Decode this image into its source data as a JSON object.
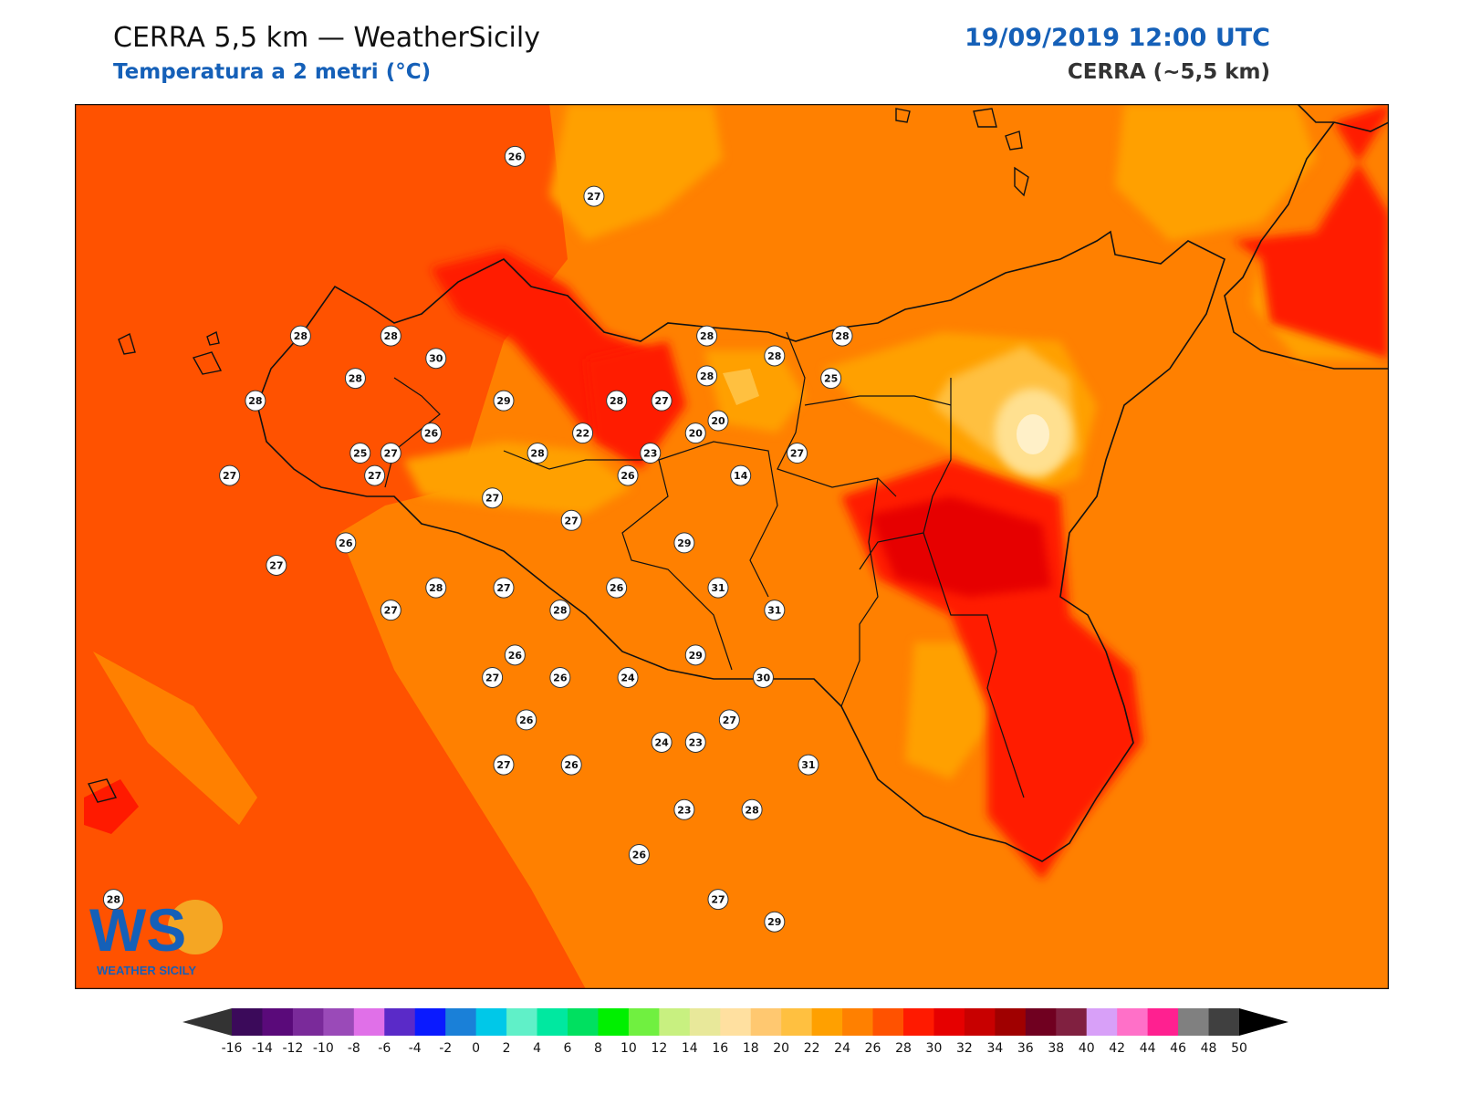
{
  "header": {
    "title": "CERRA 5,5 km — WeatherSicily",
    "subtitle": "Temperatura a 2 metri (°C)",
    "datetime": "19/09/2019 12:00 UTC",
    "model": "CERRA (~5,5 km)"
  },
  "logo": {
    "letters": "WS",
    "text": "WEATHER SICILY"
  },
  "colors": {
    "background_sea": "#ff5200",
    "land_mid": "#ff8000",
    "warm_band": "#ffa000",
    "cool_band": "#ffc040",
    "cooler": "#ffe090",
    "hot": "#ff1a00",
    "hotter": "#e60000",
    "coast": "#111111",
    "brand_blue": "#1560b8"
  },
  "stations": [
    {
      "label": "26",
      "lon": 13.73,
      "lat": 38.94
    },
    {
      "label": "27",
      "lon": 14.22,
      "lat": 38.78
    },
    {
      "label": "28",
      "lon": 12.4,
      "lat": 38.22
    },
    {
      "label": "28",
      "lon": 12.96,
      "lat": 38.22
    },
    {
      "label": "30",
      "lon": 13.24,
      "lat": 38.13
    },
    {
      "label": "28",
      "lon": 12.74,
      "lat": 38.05
    },
    {
      "label": "28",
      "lon": 12.12,
      "lat": 37.96
    },
    {
      "label": "29",
      "lon": 13.66,
      "lat": 37.96
    },
    {
      "label": "28",
      "lon": 14.36,
      "lat": 37.96
    },
    {
      "label": "27",
      "lon": 14.64,
      "lat": 37.96
    },
    {
      "label": "28",
      "lon": 14.92,
      "lat": 38.06
    },
    {
      "label": "28",
      "lon": 15.34,
      "lat": 38.14
    },
    {
      "label": "28",
      "lon": 15.76,
      "lat": 38.22
    },
    {
      "label": "28",
      "lon": 14.92,
      "lat": 38.22
    },
    {
      "label": "25",
      "lon": 15.69,
      "lat": 38.05
    },
    {
      "label": "20",
      "lon": 14.99,
      "lat": 37.88
    },
    {
      "label": "20",
      "lon": 14.85,
      "lat": 37.83
    },
    {
      "label": "14",
      "lon": 15.13,
      "lat": 37.66
    },
    {
      "label": "27",
      "lon": 15.48,
      "lat": 37.75
    },
    {
      "label": "23",
      "lon": 14.57,
      "lat": 37.75
    },
    {
      "label": "25",
      "lon": 12.77,
      "lat": 37.75
    },
    {
      "label": "27",
      "lon": 12.96,
      "lat": 37.75
    },
    {
      "label": "27",
      "lon": 12.86,
      "lat": 37.66
    },
    {
      "label": "26",
      "lon": 13.21,
      "lat": 37.83
    },
    {
      "label": "22",
      "lon": 14.15,
      "lat": 37.83
    },
    {
      "label": "28",
      "lon": 13.87,
      "lat": 37.75
    },
    {
      "label": "26",
      "lon": 14.43,
      "lat": 37.66
    },
    {
      "label": "27",
      "lon": 11.96,
      "lat": 37.66
    },
    {
      "label": "27",
      "lon": 13.59,
      "lat": 37.57
    },
    {
      "label": "27",
      "lon": 14.08,
      "lat": 37.48
    },
    {
      "label": "26",
      "lon": 12.68,
      "lat": 37.39
    },
    {
      "label": "29",
      "lon": 14.78,
      "lat": 37.39
    },
    {
      "label": "27",
      "lon": 12.25,
      "lat": 37.3
    },
    {
      "label": "31",
      "lon": 14.99,
      "lat": 37.21
    },
    {
      "label": "31",
      "lon": 15.34,
      "lat": 37.12
    },
    {
      "label": "27",
      "lon": 12.96,
      "lat": 37.12
    },
    {
      "label": "28",
      "lon": 13.24,
      "lat": 37.21
    },
    {
      "label": "27",
      "lon": 13.66,
      "lat": 37.21
    },
    {
      "label": "28",
      "lon": 14.01,
      "lat": 37.12
    },
    {
      "label": "26",
      "lon": 14.36,
      "lat": 37.21
    },
    {
      "label": "29",
      "lon": 14.85,
      "lat": 36.94
    },
    {
      "label": "26",
      "lon": 13.73,
      "lat": 36.94
    },
    {
      "label": "26",
      "lon": 14.01,
      "lat": 36.85
    },
    {
      "label": "24",
      "lon": 14.43,
      "lat": 36.85
    },
    {
      "label": "30",
      "lon": 15.27,
      "lat": 36.85
    },
    {
      "label": "27",
      "lon": 13.59,
      "lat": 36.85
    },
    {
      "label": "26",
      "lon": 13.8,
      "lat": 36.68
    },
    {
      "label": "24",
      "lon": 14.64,
      "lat": 36.59
    },
    {
      "label": "23",
      "lon": 14.85,
      "lat": 36.59
    },
    {
      "label": "27",
      "lon": 15.06,
      "lat": 36.68
    },
    {
      "label": "27",
      "lon": 13.66,
      "lat": 36.5
    },
    {
      "label": "26",
      "lon": 14.08,
      "lat": 36.5
    },
    {
      "label": "31",
      "lon": 15.55,
      "lat": 36.5
    },
    {
      "label": "23",
      "lon": 14.78,
      "lat": 36.32
    },
    {
      "label": "28",
      "lon": 15.2,
      "lat": 36.32
    },
    {
      "label": "26",
      "lon": 14.5,
      "lat": 36.14
    },
    {
      "label": "27",
      "lon": 14.99,
      "lat": 35.96
    },
    {
      "label": "29",
      "lon": 15.34,
      "lat": 35.87
    },
    {
      "label": "28",
      "lon": 11.24,
      "lat": 35.96
    }
  ],
  "colorbar": {
    "ticks": [
      "-16",
      "-14",
      "-12",
      "-10",
      "-8",
      "-6",
      "-4",
      "-2",
      "0",
      "2",
      "4",
      "6",
      "8",
      "10",
      "12",
      "14",
      "16",
      "18",
      "20",
      "22",
      "24",
      "26",
      "28",
      "30",
      "32",
      "34",
      "36",
      "38",
      "40",
      "42",
      "44",
      "46",
      "48",
      "50"
    ],
    "colors": [
      "#3b0a5a",
      "#5a0a7a",
      "#7a2a9a",
      "#9a4ab8",
      "#e070e8",
      "#5a2ac8",
      "#0a1aff",
      "#1a80d8",
      "#00c8e8",
      "#60f0c8",
      "#00e8a0",
      "#00e060",
      "#00f000",
      "#70f040",
      "#c8f080",
      "#e8e89a",
      "#ffe0a0",
      "#ffc870",
      "#ffc040",
      "#ffa000",
      "#ff8000",
      "#ff5200",
      "#ff1a00",
      "#e60000",
      "#c80000",
      "#a00000",
      "#700020",
      "#802040",
      "#d8a0f8",
      "#ff70c8",
      "#ff2090",
      "#808080",
      "#404040"
    ]
  }
}
